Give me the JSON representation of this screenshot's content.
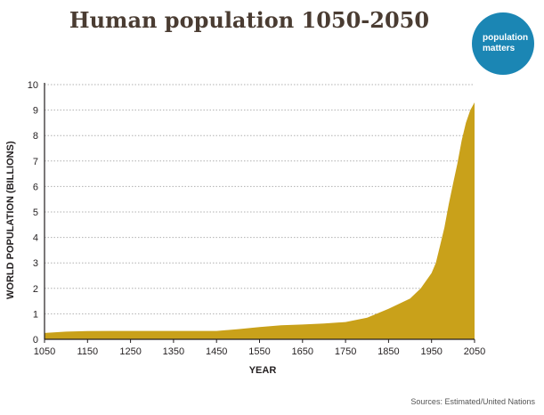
{
  "title": "Human population 1050-2050",
  "logo": {
    "line1": "population",
    "line2": "matters"
  },
  "source": "Sources: Estimated/United Nations",
  "colors": {
    "area": "#c9a11a",
    "grid": "#b0b0b0",
    "axis": "#231f20",
    "logo": "#1b86b4"
  },
  "chart_data": {
    "type": "area",
    "title": "Human population 1050-2050",
    "xlabel": "YEAR",
    "ylabel": "WORLD POPULATION (BILLIONS)",
    "xlim": [
      1050,
      2050
    ],
    "ylim": [
      0,
      10
    ],
    "xticks": [
      1050,
      1150,
      1250,
      1350,
      1450,
      1550,
      1650,
      1750,
      1850,
      1950,
      2050
    ],
    "yticks": [
      0,
      1,
      2,
      3,
      4,
      5,
      6,
      7,
      8,
      9,
      10
    ],
    "grid": true,
    "series": [
      {
        "x": [
          1050,
          1100,
          1150,
          1200,
          1250,
          1300,
          1350,
          1400,
          1450,
          1500,
          1550,
          1600,
          1650,
          1700,
          1750,
          1800,
          1850,
          1900,
          1925,
          1950,
          1960,
          1970,
          1980,
          1990,
          2000,
          2010,
          2020,
          2030,
          2040,
          2050
        ],
        "y": [
          0.25,
          0.3,
          0.32,
          0.33,
          0.33,
          0.33,
          0.33,
          0.33,
          0.33,
          0.4,
          0.48,
          0.55,
          0.58,
          0.62,
          0.68,
          0.85,
          1.2,
          1.6,
          2.0,
          2.6,
          3.0,
          3.7,
          4.4,
          5.3,
          6.1,
          6.9,
          7.8,
          8.5,
          9.0,
          9.3
        ]
      }
    ]
  }
}
